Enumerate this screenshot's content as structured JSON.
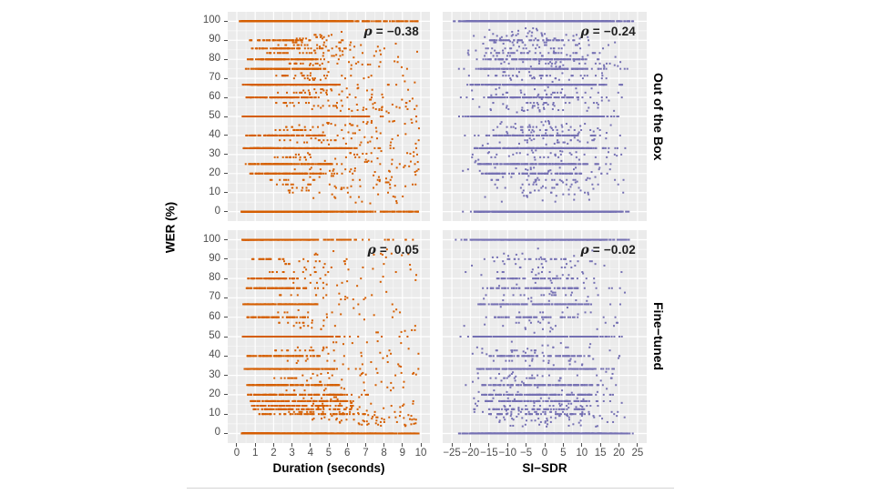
{
  "axes": {
    "y_title": "WER (%)",
    "x_title_left": "Duration (seconds)",
    "x_title_right": "SI−SDR",
    "y_ticks": {
      "values": [
        0,
        10,
        20,
        30,
        40,
        50,
        60,
        70,
        80,
        90,
        100
      ],
      "labels": [
        "0",
        "10",
        "20",
        "30",
        "40",
        "50",
        "60",
        "70",
        "80",
        "90",
        "100"
      ]
    },
    "x_ticks_left": {
      "values": [
        0,
        1,
        2,
        3,
        4,
        5,
        6,
        7,
        8,
        9,
        10
      ],
      "labels": [
        "0",
        "1",
        "2",
        "3",
        "4",
        "5",
        "6",
        "7",
        "8",
        "9",
        "10"
      ]
    },
    "x_ticks_right": {
      "values": [
        -25,
        -20,
        -15,
        -10,
        -5,
        0,
        5,
        10,
        15,
        20,
        25
      ],
      "labels": [
        "−25",
        "−20",
        "−15",
        "−10",
        "−5",
        "0",
        "5",
        "10",
        "15",
        "20",
        "25"
      ]
    }
  },
  "facets": {
    "row1": "Out of the Box",
    "row2": "Fine−tuned"
  },
  "style": {
    "panel_bg": "#EBEBEB",
    "grid_major": "#FFFFFF",
    "grid_minor": "rgba(255,255,255,0.55)",
    "orange": "#D55E00",
    "purple": "#7570B3",
    "tick_label_color": "#4D4D4D",
    "annotation_color": "#1F1F1F"
  },
  "chart_data": [
    {
      "id": "out-of-box-vs-duration",
      "type": "scatter",
      "facet_row": "Out of the Box",
      "x_label": "Duration (seconds)",
      "y_label": "WER (%)",
      "x_domain": [
        0,
        10
      ],
      "y_domain": [
        0,
        100
      ],
      "grid": true,
      "color": "#D55E00",
      "annotation": {
        "symbol": "ρ",
        "text": " = −0.38",
        "value": -0.38
      },
      "gen": {
        "seed": 101,
        "n": 2200,
        "x_profile": "duration",
        "wer_profile": "outofbox",
        "bias_on": "dur",
        "bias": 0.5,
        "bands": [
          {
            "y": 100,
            "x0": 0.15,
            "x1": 6.4,
            "n": 420
          },
          {
            "y": 100,
            "x0": 6.4,
            "x1": 9.9,
            "n": 45
          },
          {
            "y": 0,
            "x0": 0.25,
            "x1": 4.6,
            "n": 300
          },
          {
            "y": 0,
            "x0": 4.6,
            "x1": 7.0,
            "n": 55
          },
          {
            "y": 0,
            "x0": 7.0,
            "x1": 9.3,
            "n": 10
          },
          {
            "y": 50,
            "x0": 0.3,
            "x1": 7.2,
            "n": 300
          },
          {
            "y": 66.7,
            "x0": 0.3,
            "x1": 5.6,
            "n": 200
          },
          {
            "y": 33.3,
            "x0": 0.35,
            "x1": 6.2,
            "n": 190
          },
          {
            "y": 75,
            "x0": 0.4,
            "x1": 4.9,
            "n": 130
          },
          {
            "y": 25,
            "x0": 0.4,
            "x1": 5.2,
            "n": 120
          },
          {
            "y": 80,
            "x0": 0.5,
            "x1": 4.4,
            "n": 100
          },
          {
            "y": 20,
            "x0": 0.5,
            "x1": 4.6,
            "n": 90
          },
          {
            "y": 90,
            "x0": 0.6,
            "x1": 3.6,
            "n": 60
          },
          {
            "y": 60,
            "x0": 0.5,
            "x1": 4.5,
            "n": 90
          },
          {
            "y": 40,
            "x0": 0.5,
            "x1": 4.8,
            "n": 90
          },
          {
            "y": 85.7,
            "x0": 0.8,
            "x1": 3.4,
            "n": 40
          }
        ]
      }
    },
    {
      "id": "out-of-box-vs-sisdr",
      "type": "scatter",
      "facet_row": "Out of the Box",
      "x_label": "SI−SDR",
      "y_label": "WER (%)",
      "x_domain": [
        -25,
        25
      ],
      "y_domain": [
        0,
        100
      ],
      "grid": true,
      "color": "#7570B3",
      "annotation": {
        "symbol": "ρ",
        "text": " = −0.24",
        "value": -0.24
      },
      "gen": {
        "seed": 202,
        "n": 2300,
        "x_profile": "sisdr",
        "wer_profile": "outofbox",
        "bias_on": "x",
        "bias": 0.35,
        "bands": [
          {
            "y": 100,
            "x0": -21,
            "x1": 17.5,
            "n": 480
          },
          {
            "y": 100,
            "x0": -24.5,
            "x1": -21,
            "n": 8
          },
          {
            "y": 100,
            "x0": 17.5,
            "x1": 24,
            "n": 18
          },
          {
            "y": 0,
            "x0": -19,
            "x1": 12,
            "n": 300
          },
          {
            "y": 0,
            "x0": 12,
            "x1": 20,
            "n": 40
          },
          {
            "y": 50,
            "x0": -20,
            "x1": 16,
            "n": 300
          },
          {
            "y": 66.7,
            "x0": -20,
            "x1": 14,
            "n": 210
          },
          {
            "y": 33.3,
            "x0": -19,
            "x1": 14,
            "n": 190
          },
          {
            "y": 75,
            "x0": -18,
            "x1": 12,
            "n": 130
          },
          {
            "y": 25,
            "x0": -18,
            "x1": 12,
            "n": 115
          },
          {
            "y": 80,
            "x0": -17,
            "x1": 10,
            "n": 95
          },
          {
            "y": 20,
            "x0": -17,
            "x1": 10,
            "n": 85
          },
          {
            "y": 90,
            "x0": -15,
            "x1": 8,
            "n": 55
          },
          {
            "y": 60,
            "x0": -16,
            "x1": 9,
            "n": 85
          },
          {
            "y": 40,
            "x0": -16,
            "x1": 9,
            "n": 85
          }
        ]
      }
    },
    {
      "id": "fine-tuned-vs-duration",
      "type": "scatter",
      "facet_row": "Fine−tuned",
      "x_label": "Duration (seconds)",
      "y_label": "WER (%)",
      "x_domain": [
        0,
        10
      ],
      "y_domain": [
        0,
        100
      ],
      "grid": true,
      "color": "#D55E00",
      "annotation": {
        "symbol": "ρ",
        "text": " =  0.05",
        "value": 0.05
      },
      "gen": {
        "seed": 303,
        "n": 2300,
        "x_profile": "duration",
        "wer_profile": "finetuned",
        "bias_on": "none",
        "bias": 0,
        "bands": [
          {
            "y": 0,
            "x0": 0.25,
            "x1": 7.6,
            "n": 440
          },
          {
            "y": 0,
            "x0": 7.6,
            "x1": 9.7,
            "n": 45
          },
          {
            "y": 100,
            "x0": 0.3,
            "x1": 4.3,
            "n": 230
          },
          {
            "y": 100,
            "x0": 4.3,
            "x1": 6.5,
            "n": 18
          },
          {
            "y": 50,
            "x0": 0.3,
            "x1": 5.6,
            "n": 230
          },
          {
            "y": 66.7,
            "x0": 0.35,
            "x1": 4.4,
            "n": 150
          },
          {
            "y": 33.3,
            "x0": 0.4,
            "x1": 5.4,
            "n": 150
          },
          {
            "y": 25,
            "x0": 0.5,
            "x1": 5.6,
            "n": 120
          },
          {
            "y": 20,
            "x0": 0.5,
            "x1": 6.0,
            "n": 115
          },
          {
            "y": 75,
            "x0": 0.5,
            "x1": 3.8,
            "n": 70
          },
          {
            "y": 16.7,
            "x0": 0.6,
            "x1": 6.2,
            "n": 90
          },
          {
            "y": 14.3,
            "x0": 0.8,
            "x1": 6.4,
            "n": 70
          },
          {
            "y": 12.5,
            "x0": 0.9,
            "x1": 6.6,
            "n": 60
          },
          {
            "y": 10,
            "x0": 1.0,
            "x1": 7.0,
            "n": 60
          },
          {
            "y": 80,
            "x0": 0.6,
            "x1": 3.2,
            "n": 45
          },
          {
            "y": 90,
            "x0": 0.8,
            "x1": 2.6,
            "n": 25
          },
          {
            "y": 40,
            "x0": 0.5,
            "x1": 4.6,
            "n": 70
          },
          {
            "y": 60,
            "x0": 0.5,
            "x1": 4.0,
            "n": 55
          }
        ]
      }
    },
    {
      "id": "fine-tuned-vs-sisdr",
      "type": "scatter",
      "facet_row": "Fine−tuned",
      "x_label": "SI−SDR",
      "y_label": "WER (%)",
      "x_domain": [
        -25,
        25
      ],
      "y_domain": [
        0,
        100
      ],
      "grid": true,
      "color": "#7570B3",
      "annotation": {
        "symbol": "ρ",
        "text": " = −0.02",
        "value": -0.02
      },
      "gen": {
        "seed": 404,
        "n": 2300,
        "x_profile": "sisdr",
        "wer_profile": "finetuned",
        "bias_on": "none",
        "bias": 0,
        "bands": [
          {
            "y": 0,
            "x0": -20,
            "x1": 13,
            "n": 420
          },
          {
            "y": 0,
            "x0": 13,
            "x1": 21,
            "n": 45
          },
          {
            "y": 100,
            "x0": -20,
            "x1": 17,
            "n": 380
          },
          {
            "y": 100,
            "x0": -24.5,
            "x1": -20,
            "n": 6
          },
          {
            "y": 100,
            "x0": 17,
            "x1": 23,
            "n": 10
          },
          {
            "y": 50,
            "x0": -19,
            "x1": 14,
            "n": 190
          },
          {
            "y": 66.7,
            "x0": -18,
            "x1": 12,
            "n": 120
          },
          {
            "y": 33.3,
            "x0": -18,
            "x1": 13,
            "n": 130
          },
          {
            "y": 25,
            "x0": -17,
            "x1": 13,
            "n": 105
          },
          {
            "y": 20,
            "x0": -17,
            "x1": 13,
            "n": 100
          },
          {
            "y": 16.7,
            "x0": -16,
            "x1": 12,
            "n": 80
          },
          {
            "y": 75,
            "x0": -15,
            "x1": 9,
            "n": 55
          },
          {
            "y": 12.5,
            "x0": -15,
            "x1": 12,
            "n": 55
          },
          {
            "y": 10,
            "x0": -15,
            "x1": 12,
            "n": 50
          },
          {
            "y": 80,
            "x0": -13,
            "x1": 8,
            "n": 38
          },
          {
            "y": 40,
            "x0": -15,
            "x1": 10,
            "n": 60
          },
          {
            "y": 60,
            "x0": -14,
            "x1": 9,
            "n": 45
          },
          {
            "y": 90,
            "x0": -12,
            "x1": 6,
            "n": 22
          }
        ]
      }
    }
  ]
}
